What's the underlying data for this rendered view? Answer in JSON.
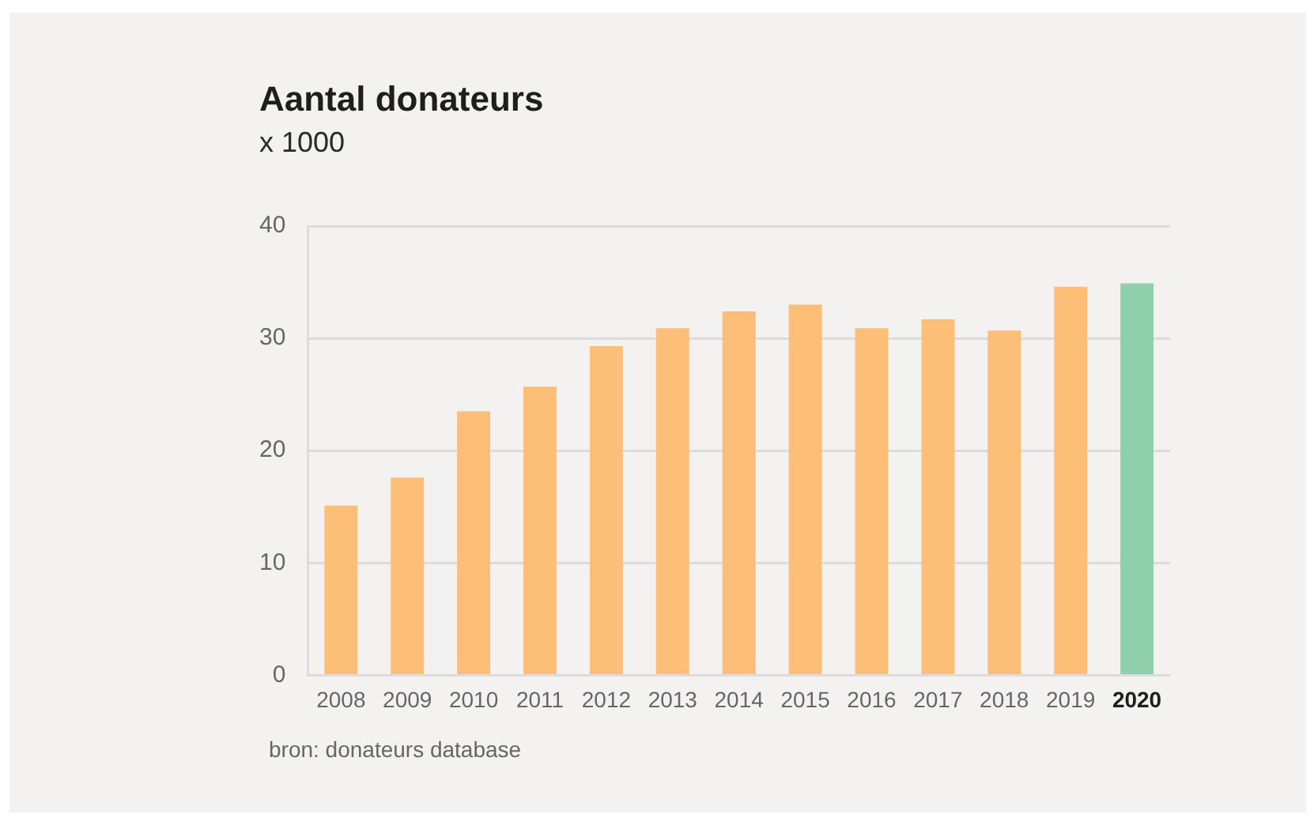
{
  "chart_data": {
    "type": "bar",
    "title": "Aantal donateurs",
    "subtitle": "x 1000",
    "categories": [
      "2008",
      "2009",
      "2010",
      "2011",
      "2012",
      "2013",
      "2014",
      "2015",
      "2016",
      "2017",
      "2018",
      "2019",
      "2020"
    ],
    "values": [
      15.1,
      17.6,
      23.5,
      25.7,
      29.3,
      30.9,
      32.4,
      33.0,
      30.9,
      31.7,
      30.7,
      34.6,
      34.9
    ],
    "colors": [
      "#fdbe78",
      "#fdbe78",
      "#fdbe78",
      "#fdbe78",
      "#fdbe78",
      "#fdbe78",
      "#fdbe78",
      "#fdbe78",
      "#fdbe78",
      "#fdbe78",
      "#fdbe78",
      "#fdbe78",
      "#8fcfab"
    ],
    "ylim": [
      0,
      40
    ],
    "yticks": [
      0,
      10,
      20,
      30,
      40
    ],
    "grid": "y",
    "legend": false,
    "annotations": [
      "bron: donateurs database"
    ]
  }
}
